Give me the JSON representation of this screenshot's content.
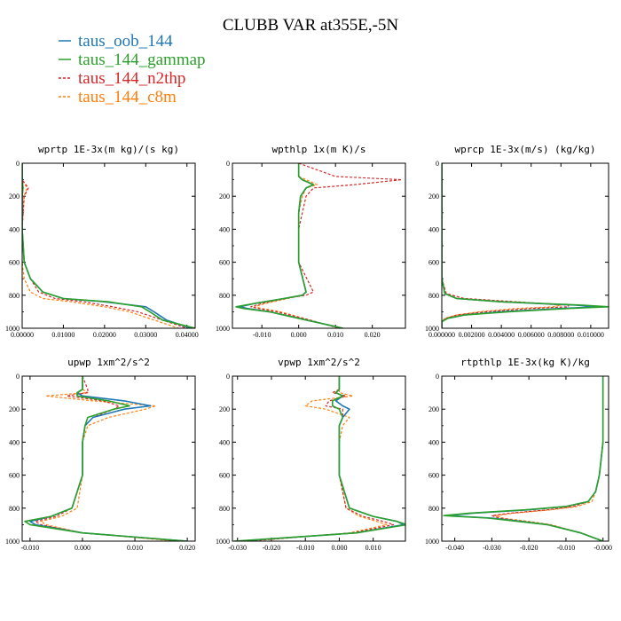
{
  "title": "CLUBB VAR at355E,-5N",
  "legend": [
    {
      "label": "taus_oob_144",
      "color": "#1f77b4",
      "dash": "solid"
    },
    {
      "label": "taus_144_gammap",
      "color": "#2ca02c",
      "dash": "solid"
    },
    {
      "label": "taus_144_n2thp",
      "color": "#d62728",
      "dash": "dashed"
    },
    {
      "label": "taus_144_c8m",
      "color": "#ff7f0e",
      "dash": "dashed"
    }
  ],
  "chart_data": [
    {
      "type": "line",
      "title": "wprtp  1E-3x(m kg)/(s kg)",
      "xlim": [
        0,
        0.042
      ],
      "ylim": [
        0,
        1000
      ],
      "xticks": [
        0,
        0.01,
        0.02,
        0.03,
        0.04
      ],
      "xtick_labels": [
        "0.00000",
        "0.01000",
        "0.02000",
        "0.03000",
        "0.04000"
      ],
      "yticks": [
        0,
        200,
        400,
        600,
        800,
        1000
      ],
      "ytick_labels": [
        "0",
        "200",
        "400",
        "600",
        "800",
        "1000"
      ],
      "y": [
        0,
        100,
        150,
        200,
        400,
        600,
        700,
        780,
        820,
        840,
        870,
        900,
        950,
        1000
      ],
      "series": [
        {
          "name": "taus_oob_144",
          "values": [
            0,
            0,
            0.0002,
            0,
            0,
            0.0005,
            0.002,
            0.005,
            0.01,
            0.02,
            0.03,
            0.032,
            0.035,
            0.041
          ]
        },
        {
          "name": "taus_144_gammap",
          "values": [
            0,
            0,
            0.0002,
            0,
            0,
            0.0005,
            0.002,
            0.005,
            0.01,
            0.021,
            0.029,
            0.031,
            0.034,
            0.042
          ]
        },
        {
          "name": "taus_144_n2thp",
          "values": [
            0,
            0,
            0.0015,
            0.0005,
            0,
            0.0005,
            0.002,
            0.004,
            0.008,
            0.015,
            0.022,
            0.028,
            0.034,
            0.04
          ]
        },
        {
          "name": "taus_144_c8m",
          "values": [
            0,
            0,
            0.0012,
            0.0004,
            0,
            0,
            0.0005,
            0.002,
            0.005,
            0.012,
            0.02,
            0.026,
            0.032,
            0.038
          ]
        }
      ]
    },
    {
      "type": "line",
      "title": "wpthlp  1x(m K)/s",
      "xlim": [
        -0.018,
        0.029
      ],
      "ylim": [
        0,
        1000
      ],
      "xticks": [
        -0.01,
        0,
        0.01,
        0.02
      ],
      "xtick_labels": [
        "-0.010",
        "0.000",
        "0.010",
        "0.020"
      ],
      "yticks": [
        0,
        200,
        400,
        600,
        800,
        1000
      ],
      "ytick_labels": [
        "0",
        "200",
        "400",
        "600",
        "800",
        "1000"
      ],
      "y": [
        0,
        80,
        100,
        130,
        150,
        200,
        300,
        400,
        600,
        780,
        800,
        820,
        850,
        870,
        880,
        900,
        950,
        1000
      ],
      "series": [
        {
          "name": "taus_oob_144",
          "values": [
            0,
            0,
            0.001,
            0.004,
            0.002,
            0.0005,
            0,
            0,
            0,
            0.002,
            0.001,
            -0.004,
            -0.012,
            -0.016,
            -0.014,
            -0.008,
            0.002,
            0.012
          ]
        },
        {
          "name": "taus_144_gammap",
          "values": [
            0,
            0,
            0.001,
            0.004,
            0.002,
            0.0005,
            0,
            0,
            0,
            0.002,
            0.001,
            -0.004,
            -0.012,
            -0.017,
            -0.015,
            -0.008,
            0.002,
            0.012
          ]
        },
        {
          "name": "taus_144_n2thp",
          "values": [
            0,
            0.01,
            0.028,
            0.015,
            0.004,
            0.002,
            0.001,
            0,
            0,
            0.004,
            0.002,
            -0.004,
            -0.01,
            -0.013,
            -0.011,
            -0.006,
            0.003,
            0.011
          ]
        },
        {
          "name": "taus_144_c8m",
          "values": [
            0,
            0,
            0.002,
            0.005,
            0.002,
            0.001,
            0,
            0,
            0,
            0.002,
            0.001,
            -0.003,
            -0.009,
            -0.012,
            -0.01,
            -0.005,
            0.003,
            0.011
          ]
        }
      ]
    },
    {
      "type": "line",
      "title": "wprcp  1E-3x(m/s) (kg/kg)",
      "xlim": [
        0,
        0.0112
      ],
      "ylim": [
        0,
        1000
      ],
      "xticks": [
        0,
        0.002,
        0.004,
        0.006,
        0.008,
        0.01
      ],
      "xtick_labels": [
        "0.000000",
        "0.002000",
        "0.004000",
        "0.006000",
        "0.008000",
        "0.010000"
      ],
      "yticks": [
        0,
        200,
        400,
        600,
        800,
        1000
      ],
      "ytick_labels": [
        "0",
        "200",
        "400",
        "600",
        "800",
        "1000"
      ],
      "y": [
        0,
        700,
        790,
        820,
        840,
        860,
        870,
        880,
        900,
        920,
        940,
        960,
        1000
      ],
      "series": [
        {
          "name": "taus_oob_144",
          "values": [
            0,
            0,
            0.0002,
            0.001,
            0.004,
            0.009,
            0.0105,
            0.008,
            0.004,
            0.0015,
            0.0004,
            0,
            0
          ]
        },
        {
          "name": "taus_144_gammap",
          "values": [
            0,
            0,
            0.0002,
            0.001,
            0.004,
            0.0095,
            0.0112,
            0.0085,
            0.0045,
            0.0015,
            0.0004,
            0,
            0
          ]
        },
        {
          "name": "taus_144_n2thp",
          "values": [
            0,
            0,
            0.0003,
            0.0015,
            0.005,
            0.0085,
            0.0085,
            0.006,
            0.003,
            0.001,
            0.0003,
            0,
            0
          ]
        },
        {
          "name": "taus_144_c8m",
          "values": [
            0,
            0,
            0.0003,
            0.0015,
            0.005,
            0.008,
            0.0075,
            0.005,
            0.0025,
            0.001,
            0.0002,
            0,
            0
          ]
        }
      ]
    },
    {
      "type": "line",
      "title": "upwp  1xm^2/s^2",
      "xlim": [
        -0.0115,
        0.0215
      ],
      "ylim": [
        0,
        1000
      ],
      "xticks": [
        -0.01,
        0,
        0.01,
        0.02
      ],
      "xtick_labels": [
        "-0.010",
        "0.000",
        "0.010",
        "0.020"
      ],
      "yticks": [
        0,
        200,
        400,
        600,
        800,
        1000
      ],
      "ytick_labels": [
        "0",
        "200",
        "400",
        "600",
        "800",
        "1000"
      ],
      "y": [
        0,
        80,
        100,
        120,
        150,
        180,
        200,
        250,
        300,
        400,
        600,
        800,
        850,
        880,
        900,
        950,
        1000
      ],
      "series": [
        {
          "name": "taus_oob_144",
          "values": [
            0,
            0,
            -0.001,
            0,
            0.008,
            0.013,
            0.008,
            0.002,
            0.0005,
            0,
            0,
            -0.002,
            -0.006,
            -0.01,
            -0.009,
            0,
            0.02
          ]
        },
        {
          "name": "taus_144_gammap",
          "values": [
            0,
            0,
            -0.001,
            -0.001,
            0.005,
            0.009,
            0.006,
            0.001,
            0.0005,
            0,
            0,
            -0.002,
            -0.006,
            -0.011,
            -0.01,
            0,
            0.02
          ]
        },
        {
          "name": "taus_144_n2thp",
          "values": [
            0,
            0.001,
            0.001,
            -0.003,
            0.004,
            0.007,
            0.006,
            0.002,
            0.0005,
            0,
            0,
            -0.002,
            -0.005,
            -0.009,
            -0.008,
            0,
            0.019
          ]
        },
        {
          "name": "taus_144_c8m",
          "values": [
            0,
            0,
            0.001,
            -0.007,
            0.002,
            0.014,
            0.012,
            0.005,
            0.001,
            0,
            0,
            -0.001,
            -0.004,
            -0.008,
            -0.007,
            0,
            0.018
          ]
        }
      ]
    },
    {
      "type": "line",
      "title": "vpwp  1xm^2/s^2",
      "xlim": [
        -0.0315,
        0.0195
      ],
      "ylim": [
        0,
        1000
      ],
      "xticks": [
        -0.03,
        -0.02,
        -0.01,
        0,
        0.01
      ],
      "xtick_labels": [
        "-0.030",
        "-0.020",
        "-0.010",
        "0.000",
        "0.010"
      ],
      "yticks": [
        0,
        200,
        400,
        600,
        800,
        1000
      ],
      "ytick_labels": [
        "0",
        "200",
        "400",
        "600",
        "800",
        "1000"
      ],
      "y": [
        0,
        80,
        100,
        120,
        150,
        180,
        200,
        250,
        300,
        400,
        600,
        800,
        850,
        880,
        900,
        950,
        1000
      ],
      "series": [
        {
          "name": "taus_oob_144",
          "values": [
            0,
            0,
            -0.001,
            0.001,
            -0.001,
            0.001,
            0.003,
            0.001,
            0,
            0,
            0,
            0.003,
            0.01,
            0.017,
            0.019,
            0.005,
            -0.03
          ]
        },
        {
          "name": "taus_144_gammap",
          "values": [
            0,
            0,
            -0.001,
            0.001,
            -0.002,
            -0.002,
            0,
            0.001,
            0,
            0,
            0,
            0.003,
            0.01,
            0.017,
            0.02,
            0.005,
            -0.031
          ]
        },
        {
          "name": "taus_144_n2thp",
          "values": [
            0,
            0,
            -0.002,
            0.002,
            -0.003,
            -0.004,
            0.001,
            0.001,
            0,
            0,
            0,
            0.002,
            0.007,
            0.013,
            0.016,
            0.004,
            -0.028
          ]
        },
        {
          "name": "taus_144_c8m",
          "values": [
            0,
            0,
            0,
            0.004,
            -0.008,
            -0.01,
            -0.004,
            0.003,
            0.001,
            0,
            0,
            0.002,
            0.006,
            0.011,
            0.014,
            0.003,
            -0.026
          ]
        }
      ]
    },
    {
      "type": "line",
      "title": "rtpthlp  1E-3x(kg K)/kg",
      "xlim": [
        -0.0435,
        0.0015
      ],
      "ylim": [
        0,
        1000
      ],
      "xticks": [
        -0.04,
        -0.03,
        -0.02,
        -0.01,
        0
      ],
      "xtick_labels": [
        "-0.040",
        "-0.030",
        "-0.020",
        "-0.010",
        "-0.000"
      ],
      "yticks": [
        0,
        200,
        400,
        600,
        800,
        1000
      ],
      "ytick_labels": [
        "0",
        "200",
        "400",
        "600",
        "800",
        "1000"
      ],
      "y": [
        0,
        400,
        600,
        700,
        760,
        790,
        810,
        830,
        845,
        860,
        880,
        900,
        950,
        1000
      ],
      "series": [
        {
          "name": "taus_oob_144",
          "values": [
            0,
            0,
            -0.001,
            -0.002,
            -0.004,
            -0.01,
            -0.02,
            -0.035,
            -0.042,
            -0.03,
            -0.022,
            -0.015,
            -0.006,
            0
          ]
        },
        {
          "name": "taus_144_gammap",
          "values": [
            0,
            0,
            -0.001,
            -0.002,
            -0.004,
            -0.01,
            -0.021,
            -0.036,
            -0.043,
            -0.031,
            -0.023,
            -0.015,
            -0.006,
            0
          ]
        },
        {
          "name": "taus_144_n2thp",
          "values": [
            0,
            0,
            -0.001,
            -0.002,
            -0.004,
            -0.008,
            -0.015,
            -0.025,
            -0.03,
            -0.028,
            -0.022,
            -0.015,
            -0.006,
            0
          ]
        },
        {
          "name": "taus_144_c8m",
          "values": [
            0,
            0,
            -0.001,
            -0.002,
            -0.003,
            -0.007,
            -0.014,
            -0.024,
            -0.029,
            -0.027,
            -0.02,
            -0.014,
            -0.006,
            0
          ]
        }
      ]
    }
  ]
}
